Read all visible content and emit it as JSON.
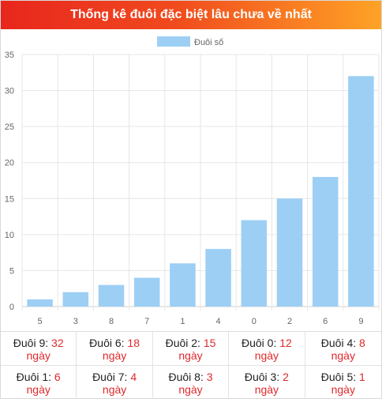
{
  "header": {
    "title": "Thống kê đuôi đặc biệt lâu chưa về nhất"
  },
  "colors": {
    "bar": "#9dcff5",
    "grid": "#e6e6e6",
    "axis": "#666666",
    "accent": "#e0292b"
  },
  "chart_data": {
    "type": "bar",
    "title": "",
    "xlabel": "",
    "ylabel": "",
    "legend": {
      "position": "top-center"
    },
    "grid": true,
    "categories": [
      "5",
      "3",
      "8",
      "7",
      "1",
      "4",
      "0",
      "2",
      "6",
      "9"
    ],
    "series": [
      {
        "name": "Đuôi số",
        "values": [
          1,
          2,
          3,
          4,
          6,
          8,
          12,
          15,
          18,
          32
        ]
      }
    ],
    "ylim": [
      0,
      35
    ],
    "yticks": [
      0,
      5,
      10,
      15,
      20,
      25,
      30,
      35
    ]
  },
  "stats": {
    "unit": "ngày",
    "items": [
      {
        "label": "Đuôi 9:",
        "value": "32"
      },
      {
        "label": "Đuôi 6:",
        "value": "18"
      },
      {
        "label": "Đuôi 2:",
        "value": "15"
      },
      {
        "label": "Đuôi 0:",
        "value": "12"
      },
      {
        "label": "Đuôi 4:",
        "value": "8"
      },
      {
        "label": "Đuôi 1:",
        "value": "6"
      },
      {
        "label": "Đuôi 7:",
        "value": "4"
      },
      {
        "label": "Đuôi 8:",
        "value": "3"
      },
      {
        "label": "Đuôi 3:",
        "value": "2"
      },
      {
        "label": "Đuôi 5:",
        "value": "1"
      }
    ]
  }
}
